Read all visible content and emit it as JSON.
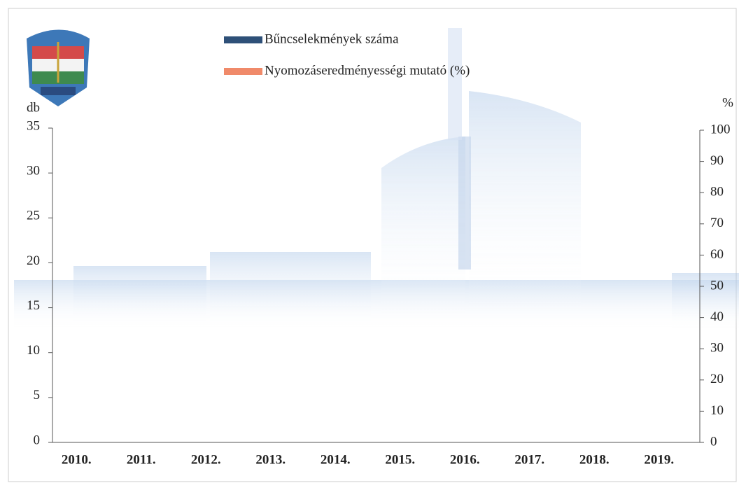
{
  "chart_data": {
    "type": "bar",
    "categories": [
      "2010.",
      "2011.",
      "2012.",
      "2013.",
      "2014.",
      "2015.",
      "2016.",
      "2017.",
      "2018.",
      "2019."
    ],
    "series": [
      {
        "name": "Bűncselekmények száma",
        "color": "#2e5078",
        "values": [
          null,
          null,
          null,
          null,
          null,
          null,
          null,
          null,
          null,
          null
        ]
      },
      {
        "name": "Nyomozáseredményességi mutató (%)",
        "color": "#f08a6a",
        "axis": "y2",
        "values": [
          null,
          null,
          null,
          null,
          null,
          null,
          null,
          null,
          null,
          null
        ]
      }
    ],
    "ylabel": "db",
    "y2label": "%",
    "ylim": [
      0,
      35
    ],
    "yticks": [
      0,
      5,
      10,
      15,
      20,
      25,
      30,
      35
    ],
    "y2lim": [
      0,
      100
    ],
    "y2ticks": [
      0,
      10,
      20,
      30,
      40,
      50,
      60,
      70,
      80,
      90,
      100
    ]
  }
}
